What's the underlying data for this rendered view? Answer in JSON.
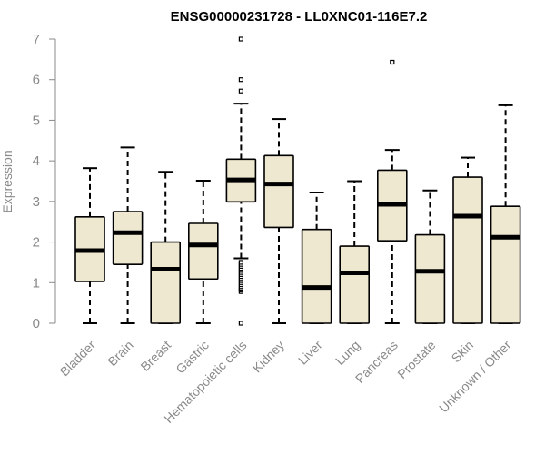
{
  "chart_data": {
    "type": "boxplot",
    "title": "ENSG00000231728 - LL0XNC01-116E7.2",
    "xlabel": "",
    "ylabel": "Expression",
    "ylim": [
      0,
      7
    ],
    "yticks": [
      0,
      1,
      2,
      3,
      4,
      5,
      6,
      7
    ],
    "box_fill": "#efe8d0",
    "categories": [
      "Bladder",
      "Brain",
      "Breast",
      "Gastric",
      "Hematopoietic cells",
      "Kidney",
      "Liver",
      "Lung",
      "Pancreas",
      "Prostate",
      "Skin",
      "Unknown / Other"
    ],
    "boxes": [
      {
        "label": "Bladder",
        "min": 0,
        "q1": 1.03,
        "median": 1.79,
        "q3": 2.62,
        "max": 3.82,
        "outliers": []
      },
      {
        "label": "Brain",
        "min": 0,
        "q1": 1.45,
        "median": 2.23,
        "q3": 2.75,
        "max": 4.33,
        "outliers": []
      },
      {
        "label": "Breast",
        "min": 0,
        "q1": 0,
        "median": 1.33,
        "q3": 2.0,
        "max": 3.73,
        "outliers": []
      },
      {
        "label": "Gastric",
        "min": 0,
        "q1": 1.09,
        "median": 1.93,
        "q3": 2.46,
        "max": 3.51,
        "outliers": []
      },
      {
        "label": "Hematopoietic cells",
        "min": 1.6,
        "q1": 2.99,
        "median": 3.53,
        "q3": 4.04,
        "max": 5.41,
        "outliers": [
          0,
          0.78,
          0.82,
          0.86,
          0.9,
          0.95,
          1.0,
          1.05,
          1.1,
          1.15,
          1.2,
          1.25,
          1.3,
          1.35,
          1.4,
          1.45,
          1.5,
          5.72,
          6.0,
          7.0
        ]
      },
      {
        "label": "Kidney",
        "min": 0,
        "q1": 2.36,
        "median": 3.43,
        "q3": 4.13,
        "max": 5.03,
        "outliers": []
      },
      {
        "label": "Liver",
        "min": 0,
        "q1": 0,
        "median": 0.88,
        "q3": 2.31,
        "max": 3.22,
        "outliers": []
      },
      {
        "label": "Lung",
        "min": 0,
        "q1": 0,
        "median": 1.24,
        "q3": 1.9,
        "max": 3.5,
        "outliers": []
      },
      {
        "label": "Pancreas",
        "min": 0,
        "q1": 2.03,
        "median": 2.93,
        "q3": 3.77,
        "max": 4.27,
        "outliers": [
          6.43
        ]
      },
      {
        "label": "Prostate",
        "min": 0,
        "q1": 0,
        "median": 1.28,
        "q3": 2.18,
        "max": 3.27,
        "outliers": []
      },
      {
        "label": "Skin",
        "min": 0,
        "q1": 0,
        "median": 2.64,
        "q3": 3.6,
        "max": 4.08,
        "outliers": []
      },
      {
        "label": "Unknown / Other",
        "min": 0,
        "q1": 0,
        "median": 2.12,
        "q3": 2.88,
        "max": 5.37,
        "outliers": []
      }
    ]
  }
}
